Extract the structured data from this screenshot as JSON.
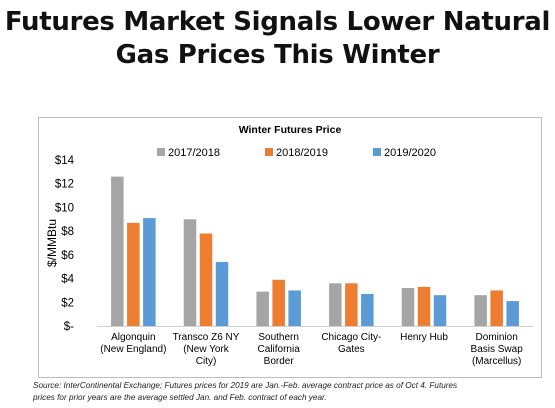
{
  "headline": {
    "line1": "Futures Market Signals Lower Natural",
    "line2": "Gas Prices This Winter"
  },
  "source": {
    "line1": "Source: InterContinental Exchange; Futures prices for 2019 are Jan.-Feb. average contract price as of Oct 4.  Futures",
    "line2": "prices for prior years are the average settled Jan. and Feb. contract of each year."
  },
  "chart_data": {
    "type": "bar",
    "title": "Winter Futures Price",
    "ylabel": "$/MMBtu",
    "xlabel": "",
    "ylim": [
      0,
      14
    ],
    "yticks": [
      0,
      2,
      4,
      6,
      8,
      10,
      12,
      14
    ],
    "ytick_labels": [
      "$-",
      "$2",
      "$4",
      "$6",
      "$8",
      "$10",
      "$12",
      "$14"
    ],
    "grid": false,
    "legend_position": "top",
    "categories": [
      [
        "Algonquin",
        "(New England)"
      ],
      [
        "Transco Z6 NY",
        "(New York",
        "City)"
      ],
      [
        "Southern",
        "California",
        "Border"
      ],
      [
        "Chicago City-",
        "Gates"
      ],
      [
        "Henry Hub"
      ],
      [
        "Dominion",
        "Basis Swap",
        "(Marcellus)"
      ]
    ],
    "series": [
      {
        "name": "2017/2018",
        "color": "#a5a5a5",
        "values": [
          12.6,
          9.0,
          2.9,
          3.6,
          3.2,
          2.6
        ]
      },
      {
        "name": "2018/2019",
        "color": "#ed7d31",
        "values": [
          8.7,
          7.8,
          3.9,
          3.6,
          3.3,
          3.0
        ]
      },
      {
        "name": "2019/2020",
        "color": "#5b9bd5",
        "values": [
          9.1,
          5.4,
          3.0,
          2.7,
          2.6,
          2.1
        ]
      }
    ]
  }
}
